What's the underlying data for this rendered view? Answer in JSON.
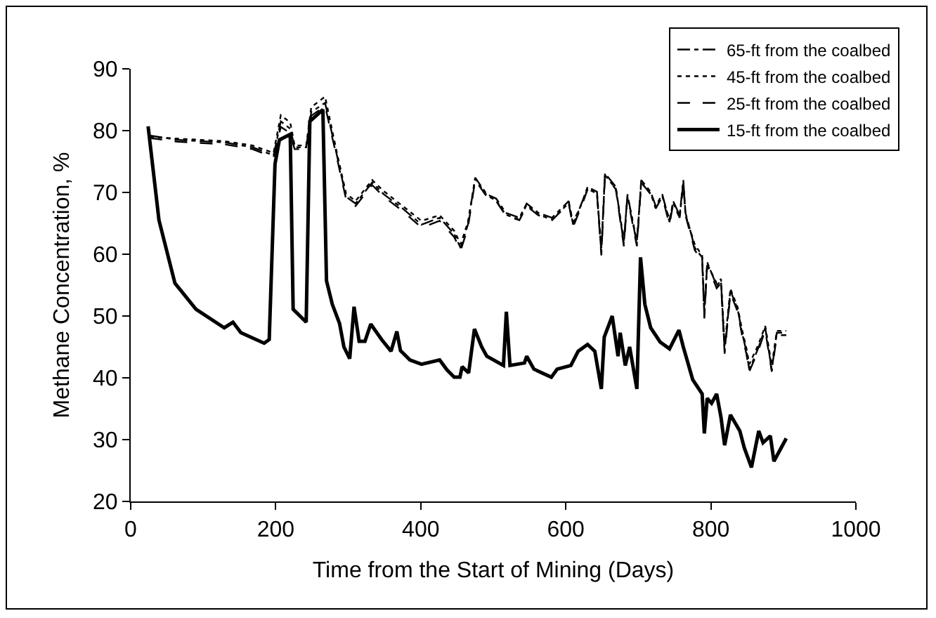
{
  "chart_data": {
    "type": "line",
    "xlabel": "Time from the Start of Mining (Days)",
    "ylabel": "Methane Concentration, %",
    "xlim": [
      0,
      1000
    ],
    "xticks": [
      0,
      200,
      400,
      600,
      800,
      1000
    ],
    "ylim": [
      20,
      90
    ],
    "yticks": [
      20,
      30,
      40,
      50,
      60,
      70,
      80,
      90
    ],
    "grid": false,
    "legend": "top right",
    "marker": "none",
    "series": [
      {
        "name": "65-ft from the coalbed",
        "color": "#000000",
        "line_style": "dashdot",
        "x": [
          26,
          65,
          129,
          168,
          197,
          207,
          220,
          226,
          242,
          249,
          268,
          284,
          297,
          310,
          333,
          349,
          375,
          401,
          426,
          446,
          455,
          465,
          475,
          491,
          504,
          517,
          536,
          546,
          562,
          581,
          604,
          610,
          623,
          630,
          643,
          649,
          654,
          669,
          680,
          685,
          698,
          704,
          717,
          724,
          733,
          743,
          748,
          757,
          762,
          765,
          778,
          788,
          791,
          795,
          808,
          814,
          819,
          827,
          837,
          843,
          849,
          853,
          866,
          875,
          884,
          891,
          904
        ],
        "values": [
          79.2,
          78.5,
          78.1,
          77.3,
          76,
          81.5,
          80.3,
          77.3,
          77.3,
          83,
          84.5,
          76.2,
          69.3,
          68.2,
          71.6,
          69.7,
          67.4,
          64.8,
          65.9,
          63.3,
          61,
          64.8,
          72.4,
          69.7,
          69,
          66.7,
          65.9,
          68.2,
          66.7,
          65.9,
          68.6,
          64.8,
          68.6,
          70.9,
          70.1,
          60.2,
          73.1,
          70.9,
          61.7,
          69.7,
          61.7,
          72,
          70.1,
          67.8,
          69.7,
          65.2,
          68.6,
          66.3,
          72,
          66.7,
          61,
          59.5,
          50,
          58.7,
          54.9,
          55.7,
          44.3,
          54.1,
          51.1,
          47.3,
          44.3,
          41.3,
          45,
          48.1,
          41.3,
          47.3,
          47.3
        ]
      },
      {
        "name": "45-ft from the coalbed",
        "color": "#000000",
        "line_style": "dotted",
        "x": [
          26,
          65,
          129,
          168,
          197,
          207,
          220,
          226,
          242,
          249,
          268,
          284,
          297,
          310,
          333,
          349,
          375,
          401,
          426,
          446,
          455,
          465,
          475,
          491,
          504,
          517,
          536,
          546,
          562,
          581,
          604,
          610,
          623,
          630,
          643,
          649,
          654,
          669,
          680,
          685,
          698,
          704,
          717,
          724,
          733,
          743,
          748,
          757,
          762,
          765,
          778,
          788,
          791,
          795,
          808,
          814,
          819,
          827,
          837,
          843,
          849,
          853,
          866,
          875,
          884,
          891,
          904
        ],
        "values": [
          79,
          78.7,
          78.3,
          77.6,
          76.4,
          82.5,
          81.3,
          77.6,
          77.6,
          83.8,
          85.5,
          76.6,
          69.8,
          68.6,
          72,
          70.2,
          67.8,
          65.4,
          66.3,
          63.8,
          61.6,
          65.2,
          72.2,
          69.5,
          68.7,
          66.4,
          65.6,
          68,
          66.4,
          65.6,
          68.3,
          65.2,
          68.4,
          70.6,
          69.8,
          61,
          72.8,
          70.6,
          62.2,
          69.4,
          62.2,
          71.6,
          69.8,
          67.5,
          69.4,
          65.6,
          68.3,
          66,
          71.6,
          66.4,
          61.5,
          59.8,
          51,
          58.4,
          55.3,
          56,
          45.2,
          54.4,
          51.4,
          47.8,
          44.8,
          42.2,
          45.5,
          48.4,
          42,
          47.6,
          47.6
        ]
      },
      {
        "name": "25-ft from the coalbed",
        "color": "#000000",
        "line_style": "dashed",
        "x": [
          26,
          65,
          129,
          168,
          197,
          207,
          220,
          226,
          242,
          249,
          268,
          284,
          297,
          310,
          333,
          349,
          375,
          401,
          426,
          446,
          455,
          465,
          475,
          491,
          504,
          517,
          536,
          546,
          562,
          581,
          604,
          610,
          623,
          630,
          643,
          649,
          654,
          669,
          680,
          685,
          698,
          704,
          717,
          724,
          733,
          743,
          748,
          757,
          762,
          765,
          778,
          788,
          791,
          795,
          808,
          814,
          819,
          827,
          837,
          843,
          849,
          853,
          866,
          875,
          884,
          891,
          904
        ],
        "values": [
          78.8,
          78.2,
          77.8,
          77,
          75.7,
          80.6,
          79.6,
          77,
          77,
          82.4,
          84,
          75.8,
          68.9,
          67.8,
          71.2,
          69.3,
          67,
          64.3,
          65.4,
          62.8,
          60.6,
          64.3,
          72,
          69.3,
          68.6,
          66.3,
          65.5,
          67.8,
          66.3,
          65.5,
          68.2,
          64.4,
          68.2,
          70.5,
          69.7,
          59.8,
          72.7,
          70.5,
          61.3,
          69.3,
          61.3,
          71.6,
          69.7,
          67.4,
          69.3,
          64.8,
          68.2,
          65.9,
          71.6,
          66.3,
          60.6,
          59.1,
          49.6,
          58.3,
          54.5,
          55.3,
          43.9,
          53.7,
          50.7,
          46.9,
          43.9,
          41,
          44.6,
          47.7,
          41,
          46.9,
          46.9
        ]
      },
      {
        "name": "15-ft from the coalbed",
        "color": "#000000",
        "line_style": "solid",
        "x": [
          24,
          39,
          61,
          90,
          129,
          141,
          152,
          184,
          191,
          199,
          205,
          220,
          224,
          242,
          247,
          265,
          270,
          278,
          288,
          294,
          302,
          308,
          315,
          323,
          331,
          346,
          359,
          367,
          372,
          385,
          401,
          426,
          436,
          446,
          454,
          457,
          466,
          474,
          484,
          491,
          514,
          518,
          523,
          543,
          546,
          556,
          580,
          588,
          607,
          617,
          630,
          640,
          649,
          653,
          664,
          672,
          675,
          682,
          688,
          698,
          703,
          709,
          717,
          730,
          743,
          756,
          762,
          775,
          788,
          791,
          795,
          801,
          808,
          814,
          819,
          827,
          840,
          846,
          856,
          866,
          872,
          882,
          887,
          904
        ],
        "values": [
          80.7,
          65.5,
          55.3,
          51.1,
          48.1,
          49,
          47.3,
          45.6,
          46.2,
          74.6,
          78.5,
          79.4,
          51.1,
          49,
          81.5,
          83.4,
          55.7,
          51.9,
          48.8,
          45,
          43.1,
          51.5,
          45.9,
          45.9,
          48.7,
          46.2,
          44.3,
          47.5,
          44.4,
          42.9,
          42.2,
          42.9,
          41.3,
          40.1,
          40.1,
          41.8,
          40.8,
          47.9,
          45,
          43.5,
          42,
          50.7,
          42,
          42.4,
          43.5,
          41.4,
          40.1,
          41.4,
          42,
          44.3,
          45.4,
          44.3,
          38.2,
          46.6,
          50,
          43.5,
          47.3,
          42,
          45,
          38.2,
          59.5,
          51.9,
          48.1,
          45.8,
          44.7,
          47.7,
          45,
          39.7,
          37.4,
          31,
          36.7,
          35.9,
          37.4,
          33.6,
          29.1,
          34,
          31.4,
          28.7,
          25.5,
          31.4,
          29.5,
          30.6,
          26.5,
          30.2
        ]
      }
    ]
  }
}
